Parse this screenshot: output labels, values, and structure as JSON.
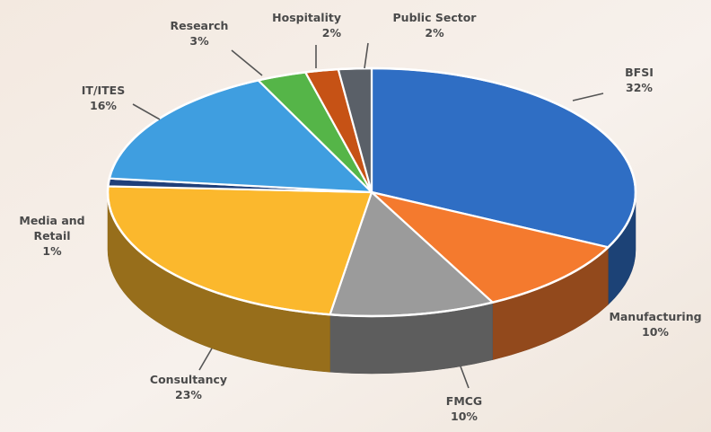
{
  "chart_data": {
    "type": "pie",
    "style": "3d",
    "labels": [
      "BFSI",
      "Manufacturing",
      "FMCG",
      "Consultancy",
      "Media and Retail",
      "IT/ITES",
      "Research",
      "Hospitality",
      "Public Sector"
    ],
    "values": [
      32,
      10,
      10,
      23,
      1,
      16,
      3,
      2,
      2
    ],
    "value_labels": [
      "32%",
      "10%",
      "10%",
      "23%",
      "1%",
      "16%",
      "3%",
      "2%",
      "2%"
    ],
    "colors": [
      "#2f6ec4",
      "#f47a2e",
      "#9b9b9b",
      "#fbb82d",
      "#1f3f7a",
      "#3f9ee0",
      "#55b548",
      "#c65215",
      "#5a6068"
    ],
    "title": "",
    "legend": "none"
  }
}
